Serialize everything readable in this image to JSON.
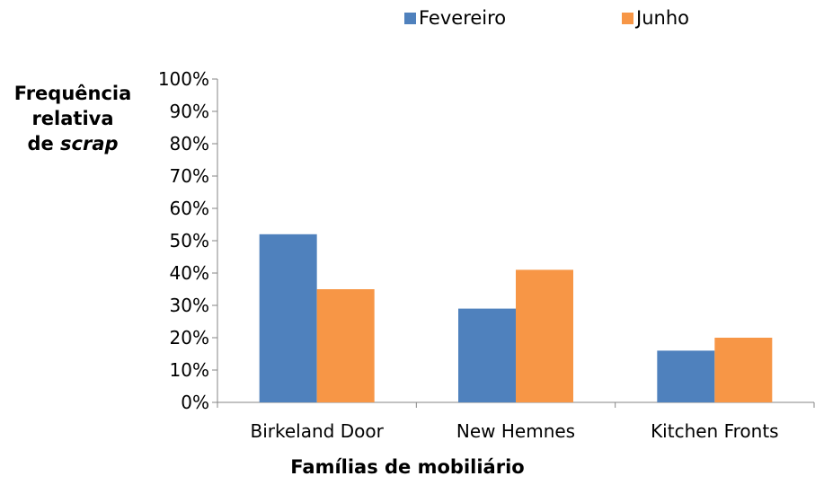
{
  "chart_data": {
    "type": "bar",
    "categories": [
      "Birkeland Door",
      "New Hemnes",
      "Kitchen Fronts"
    ],
    "series": [
      {
        "name": "Fevereiro",
        "color": "#4F81BD",
        "values": [
          52,
          29,
          16
        ]
      },
      {
        "name": "Junho",
        "color": "#F79646",
        "values": [
          35,
          41,
          20
        ]
      }
    ],
    "ylabel": {
      "line1": "Frequência",
      "line2": "relativa",
      "line3_prefix": "de ",
      "line3_italic": "scrap"
    },
    "xlabel": "Famílias de mobiliário",
    "ylim": [
      0,
      100
    ],
    "y_ticks": [
      "0%",
      "10%",
      "20%",
      "30%",
      "40%",
      "50%",
      "60%",
      "70%",
      "80%",
      "90%",
      "100%"
    ],
    "y_tick_values": [
      0,
      10,
      20,
      30,
      40,
      50,
      60,
      70,
      80,
      90,
      100
    ],
    "legend_position": "top",
    "grid": false
  }
}
